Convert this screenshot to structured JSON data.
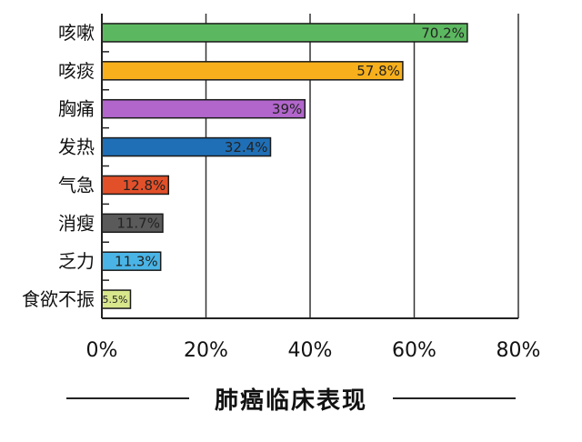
{
  "chart_data": {
    "type": "bar",
    "orientation": "horizontal",
    "categories": [
      "咳嗽",
      "咳痰",
      "胸痛",
      "发热",
      "气急",
      "消瘦",
      "乏力",
      "食欲不振"
    ],
    "values": [
      70.2,
      57.8,
      39,
      32.4,
      12.8,
      11.7,
      11.3,
      5.5
    ],
    "value_labels": [
      "70.2%",
      "57.8%",
      "39%",
      "32.4%",
      "12.8%",
      "11.7%",
      "11.3%",
      "5.5%"
    ],
    "colors": [
      "#5cb860",
      "#f7b01c",
      "#b266cc",
      "#1f6fb6",
      "#e2502a",
      "#5a5a5a",
      "#4ab4e6",
      "#d8e68c"
    ],
    "xlim": [
      0,
      80
    ],
    "xticks": [
      0,
      20,
      40,
      60,
      80
    ],
    "xtick_labels": [
      "0%",
      "20%",
      "40%",
      "60%",
      "80%"
    ],
    "grid": "vertical",
    "title": "肺癌临床表现"
  }
}
